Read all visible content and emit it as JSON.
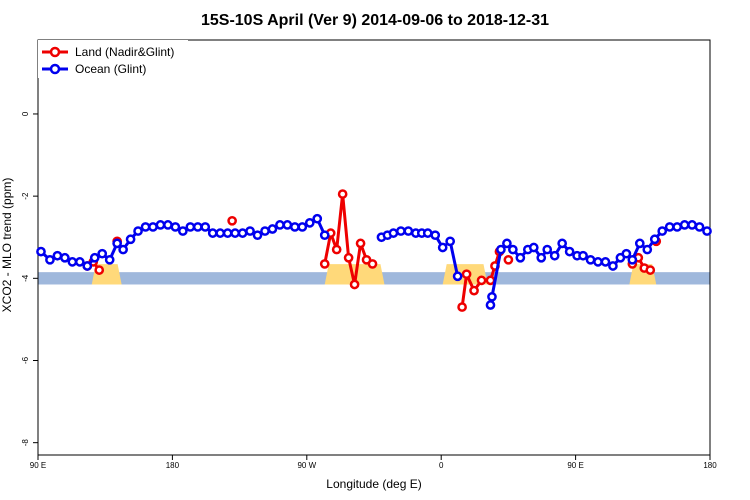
{
  "chart_data": {
    "type": "line",
    "title": "15S-10S April (Ver 9)   2014-09-06 to 2018-12-31",
    "xlabel": "Longitude (deg E)",
    "ylabel": "XCO2 - MLO trend (ppm)",
    "xlim": [
      90,
      450
    ],
    "ylim": [
      -8.3,
      1.8
    ],
    "xticks": [
      {
        "value": 90,
        "label": "90 E"
      },
      {
        "value": 180,
        "label": "180"
      },
      {
        "value": 270,
        "label": "90 W"
      },
      {
        "value": 360,
        "label": "0"
      },
      {
        "value": 450,
        "label": "90 E"
      },
      {
        "value": 540,
        "label": "180"
      }
    ],
    "xaxis_extent": [
      90,
      540
    ],
    "yticks": [
      {
        "value": 0,
        "label": "0"
      },
      {
        "value": -2,
        "label": "-2"
      },
      {
        "value": -4,
        "label": "-4"
      },
      {
        "value": -6,
        "label": "-6"
      },
      {
        "value": -8,
        "label": "-8"
      }
    ],
    "legend": {
      "position": "top-left"
    },
    "grid": false,
    "band": {
      "y_from": -3.85,
      "y_to": -4.15,
      "color": "#9fb8dc"
    },
    "land_patches": {
      "color": "#ffd97a",
      "ranges": [
        [
          126,
          146
        ],
        [
          282,
          322
        ],
        [
          361,
          391
        ],
        [
          486,
          504
        ]
      ]
    },
    "series": [
      {
        "name": "Land (Nadir&Glint)",
        "color": "#ee0000",
        "segments": [
          {
            "x": [
              123,
              127,
              131
            ],
            "y": [
              -3.7,
              -3.6,
              -3.8
            ]
          },
          {
            "x": [
              143
            ],
            "y": [
              -3.1
            ]
          },
          {
            "x": [
              220
            ],
            "y": [
              -2.6
            ]
          },
          {
            "x": [
              282,
              286,
              290,
              294,
              298,
              302,
              306,
              310,
              314
            ],
            "y": [
              -3.65,
              -2.9,
              -3.3,
              -1.95,
              -3.5,
              -4.15,
              -3.15,
              -3.55,
              -3.65
            ]
          },
          {
            "x": [
              374,
              377,
              382,
              387,
              393,
              396,
              399
            ],
            "y": [
              -4.7,
              -3.9,
              -4.3,
              -4.05,
              -4.05,
              -3.7,
              -3.35
            ]
          },
          {
            "x": [
              405
            ],
            "y": [
              -3.55
            ]
          },
          {
            "x": [
              488,
              492,
              496,
              500
            ],
            "y": [
              -3.65,
              -3.5,
              -3.75,
              -3.8
            ]
          },
          {
            "x": [
              504
            ],
            "y": [
              -3.1
            ]
          }
        ]
      },
      {
        "name": "Ocean (Glint)",
        "color": "#0000ee",
        "segments": [
          {
            "x": [
              92,
              98,
              103,
              108,
              113,
              118,
              123,
              128,
              133,
              138,
              143,
              147,
              152,
              157,
              162,
              167,
              172,
              177,
              182,
              187,
              192,
              197,
              202,
              207,
              212,
              217,
              222,
              227,
              232,
              237,
              242,
              247,
              252,
              257,
              262,
              267,
              272,
              277,
              282
            ],
            "y": [
              -3.35,
              -3.55,
              -3.45,
              -3.5,
              -3.6,
              -3.6,
              -3.7,
              -3.5,
              -3.4,
              -3.55,
              -3.15,
              -3.3,
              -3.05,
              -2.85,
              -2.75,
              -2.75,
              -2.7,
              -2.7,
              -2.75,
              -2.85,
              -2.75,
              -2.75,
              -2.75,
              -2.9,
              -2.9,
              -2.9,
              -2.9,
              -2.9,
              -2.85,
              -2.95,
              -2.85,
              -2.8,
              -2.7,
              -2.7,
              -2.75,
              -2.75,
              -2.65,
              -2.55,
              -2.95
            ]
          },
          {
            "x": [
              320,
              324,
              328,
              333,
              338,
              343,
              347,
              351,
              356,
              361,
              366,
              371
            ],
            "y": [
              -3.0,
              -2.95,
              -2.9,
              -2.85,
              -2.85,
              -2.9,
              -2.9,
              -2.9,
              -2.95,
              -3.25,
              -3.1,
              -3.95
            ]
          },
          {
            "x": [
              393,
              394,
              400,
              404,
              408,
              413,
              418,
              422,
              427,
              431,
              436,
              441,
              446,
              451,
              455,
              460,
              465,
              470,
              475,
              480,
              484,
              488,
              493,
              498,
              503,
              508,
              513,
              518,
              523,
              528,
              533,
              538
            ],
            "y": [
              -4.65,
              -4.45,
              -3.3,
              -3.15,
              -3.3,
              -3.5,
              -3.3,
              -3.25,
              -3.5,
              -3.3,
              -3.45,
              -3.15,
              -3.35,
              -3.45,
              -3.45,
              -3.55,
              -3.6,
              -3.6,
              -3.7,
              -3.5,
              -3.4,
              -3.55,
              -3.15,
              -3.3,
              -3.05,
              -2.85,
              -2.75,
              -2.75,
              -2.7,
              -2.7,
              -2.75,
              -2.85
            ]
          }
        ]
      }
    ]
  }
}
